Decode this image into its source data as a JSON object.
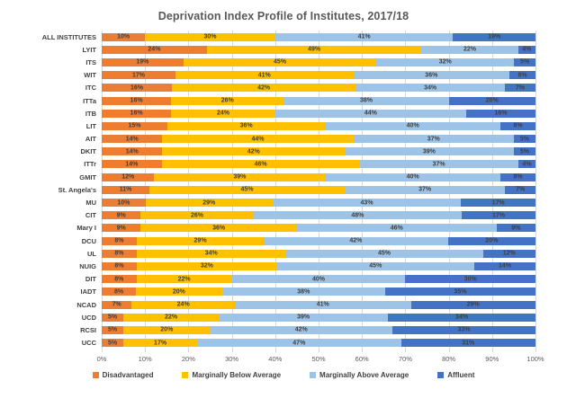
{
  "chart_data": {
    "type": "bar",
    "stacked": true,
    "orientation": "horizontal",
    "title": "Deprivation Index Profile of Institutes, 2017/18",
    "categories": [
      "ALL INSTITUTES",
      "LYIT",
      "ITS",
      "WIT",
      "ITC",
      "ITTa",
      "ITB",
      "LIT",
      "AIT",
      "DKIT",
      "ITTr",
      "GMIT",
      "St. Angela's",
      "MU",
      "CIT",
      "Mary I",
      "DCU",
      "UL",
      "NUIG",
      "DIT",
      "IADT",
      "NCAD",
      "UCD",
      "RCSI",
      "UCC"
    ],
    "series": [
      {
        "name": "Disadvantaged",
        "color": "#ED7D31",
        "values": [
          10,
          24,
          19,
          17,
          16,
          16,
          16,
          15,
          14,
          14,
          14,
          12,
          11,
          10,
          9,
          9,
          8,
          8,
          8,
          8,
          8,
          7,
          5,
          5,
          5
        ]
      },
      {
        "name": "Marginally Below Average",
        "color": "#FFC000",
        "values": [
          30,
          49,
          45,
          41,
          42,
          26,
          24,
          36,
          44,
          42,
          46,
          39,
          45,
          29,
          26,
          36,
          29,
          34,
          32,
          22,
          20,
          24,
          22,
          20,
          17
        ]
      },
      {
        "name": "Marginally Above Average",
        "color": "#9DC3E6",
        "values": [
          41,
          22,
          32,
          36,
          34,
          38,
          44,
          40,
          37,
          39,
          37,
          40,
          37,
          43,
          48,
          46,
          42,
          45,
          45,
          40,
          38,
          41,
          39,
          42,
          47
        ]
      },
      {
        "name": "Affluent",
        "color": "#4472C4",
        "values": [
          19,
          4,
          5,
          6,
          7,
          20,
          16,
          8,
          5,
          5,
          4,
          8,
          7,
          17,
          17,
          9,
          20,
          12,
          14,
          30,
          35,
          29,
          34,
          33,
          31
        ]
      }
    ],
    "x_ticks": [
      "0%",
      "10%",
      "20%",
      "30%",
      "40%",
      "50%",
      "60%",
      "70%",
      "80%",
      "90%",
      "100%"
    ],
    "xlim": [
      0,
      100
    ],
    "grid": "vertical",
    "gridline_color": "#D9D9D9",
    "legend_position": "bottom",
    "value_suffix": "%"
  }
}
